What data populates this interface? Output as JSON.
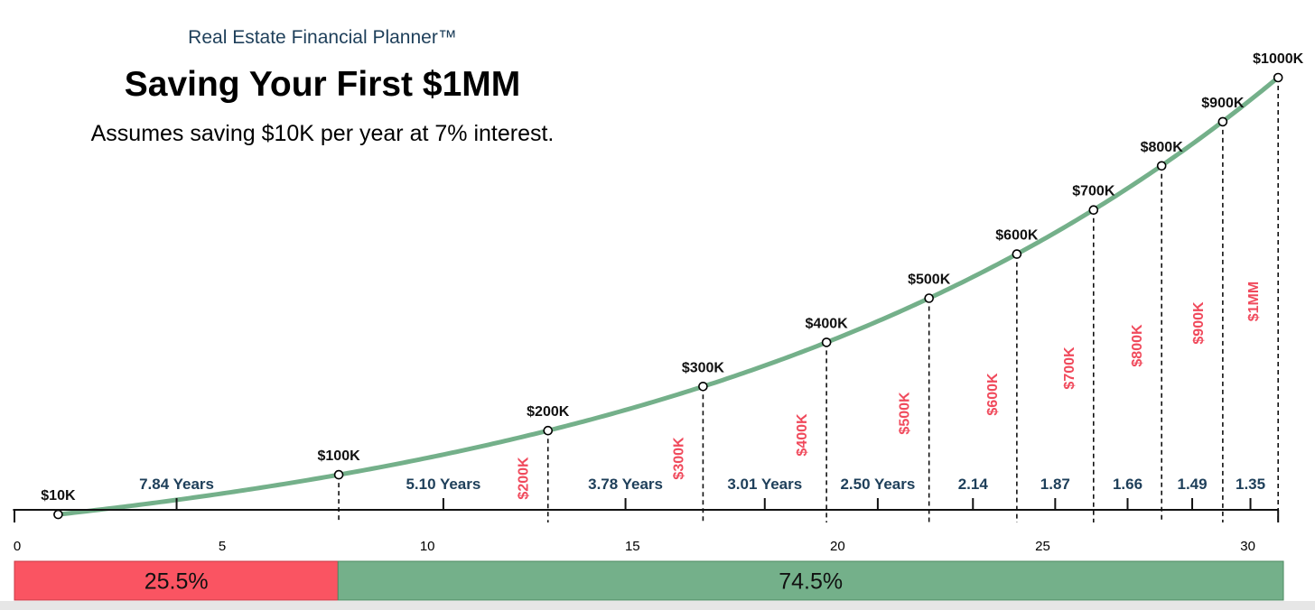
{
  "header": {
    "brand": "Real Estate Financial Planner™",
    "title": "Saving Your First $1MM",
    "subtitle": "Assumes saving $10K per year at 7% interest."
  },
  "colors": {
    "curve": "#74b08a",
    "milestone_label": "#111111",
    "vertical_label": "#f04a5c",
    "duration_label": "#1e3f5a",
    "bar_first": "#fa5462",
    "bar_rest": "#74b08a"
  },
  "chart_data": {
    "type": "line",
    "xlim": [
      0,
      31
    ],
    "x_ticks": [
      0,
      5,
      10,
      15,
      20,
      25,
      30
    ],
    "ylim": [
      0,
      1000
    ],
    "y_unit": "K",
    "grid": false,
    "series": [
      {
        "points": [
          {
            "x": 1,
            "y": 10
          },
          {
            "x": 7.84,
            "y": 100
          },
          {
            "x": 12.94,
            "y": 200
          },
          {
            "x": 16.72,
            "y": 300
          },
          {
            "x": 19.73,
            "y": 400
          },
          {
            "x": 22.23,
            "y": 500
          },
          {
            "x": 24.37,
            "y": 600
          },
          {
            "x": 26.24,
            "y": 700
          },
          {
            "x": 27.9,
            "y": 800
          },
          {
            "x": 29.39,
            "y": 900
          },
          {
            "x": 30.74,
            "y": 1000
          }
        ]
      }
    ],
    "milestone_labels": [
      "$10K",
      "$100K",
      "$200K",
      "$300K",
      "$400K",
      "$500K",
      "$600K",
      "$700K",
      "$800K",
      "$900K",
      "$1000K"
    ],
    "vertical_labels": [
      "$200K",
      "$300K",
      "$400K",
      "$500K",
      "$600K",
      "$700K",
      "$800K",
      "$900K",
      "$1MM"
    ],
    "durations": [
      "7.84 Years",
      "5.10 Years",
      "3.78 Years",
      "3.01 Years",
      "2.50 Years",
      "2.14",
      "1.87",
      "1.66",
      "1.49",
      "1.35"
    ],
    "split_bar": [
      {
        "label": "25.5%",
        "value": 25.5
      },
      {
        "label": "74.5%",
        "value": 74.5
      }
    ]
  }
}
